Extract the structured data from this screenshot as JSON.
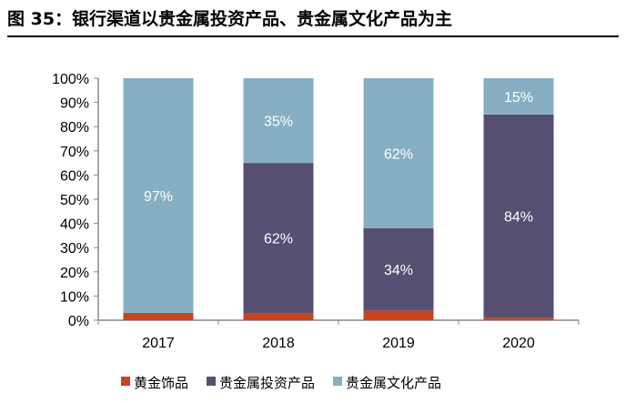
{
  "title": "图 35：银行渠道以贵金属投资产品、贵金属文化产品为主",
  "chart_data": {
    "type": "bar",
    "stacked": true,
    "title": "图 35：银行渠道以贵金属投资产品、贵金属文化产品为主",
    "categories": [
      "2017",
      "2018",
      "2019",
      "2020"
    ],
    "series": [
      {
        "name": "黄金饰品",
        "color": "#C8441F",
        "values": [
          3,
          3,
          4,
          1
        ],
        "labels": [
          null,
          null,
          null,
          null
        ]
      },
      {
        "name": "贵金属投资产品",
        "color": "#564F72",
        "values": [
          0,
          62,
          34,
          84
        ],
        "labels": [
          null,
          "62%",
          "34%",
          "84%"
        ]
      },
      {
        "name": "贵金属文化产品",
        "color": "#86AFC3",
        "values": [
          97,
          35,
          62,
          15
        ],
        "labels": [
          "97%",
          "35%",
          "62%",
          "15%"
        ]
      }
    ],
    "yticks": [
      "0%",
      "10%",
      "20%",
      "30%",
      "40%",
      "50%",
      "60%",
      "70%",
      "80%",
      "90%",
      "100%"
    ],
    "ylim": [
      0,
      100
    ],
    "legend": "bottom",
    "grid": false
  }
}
